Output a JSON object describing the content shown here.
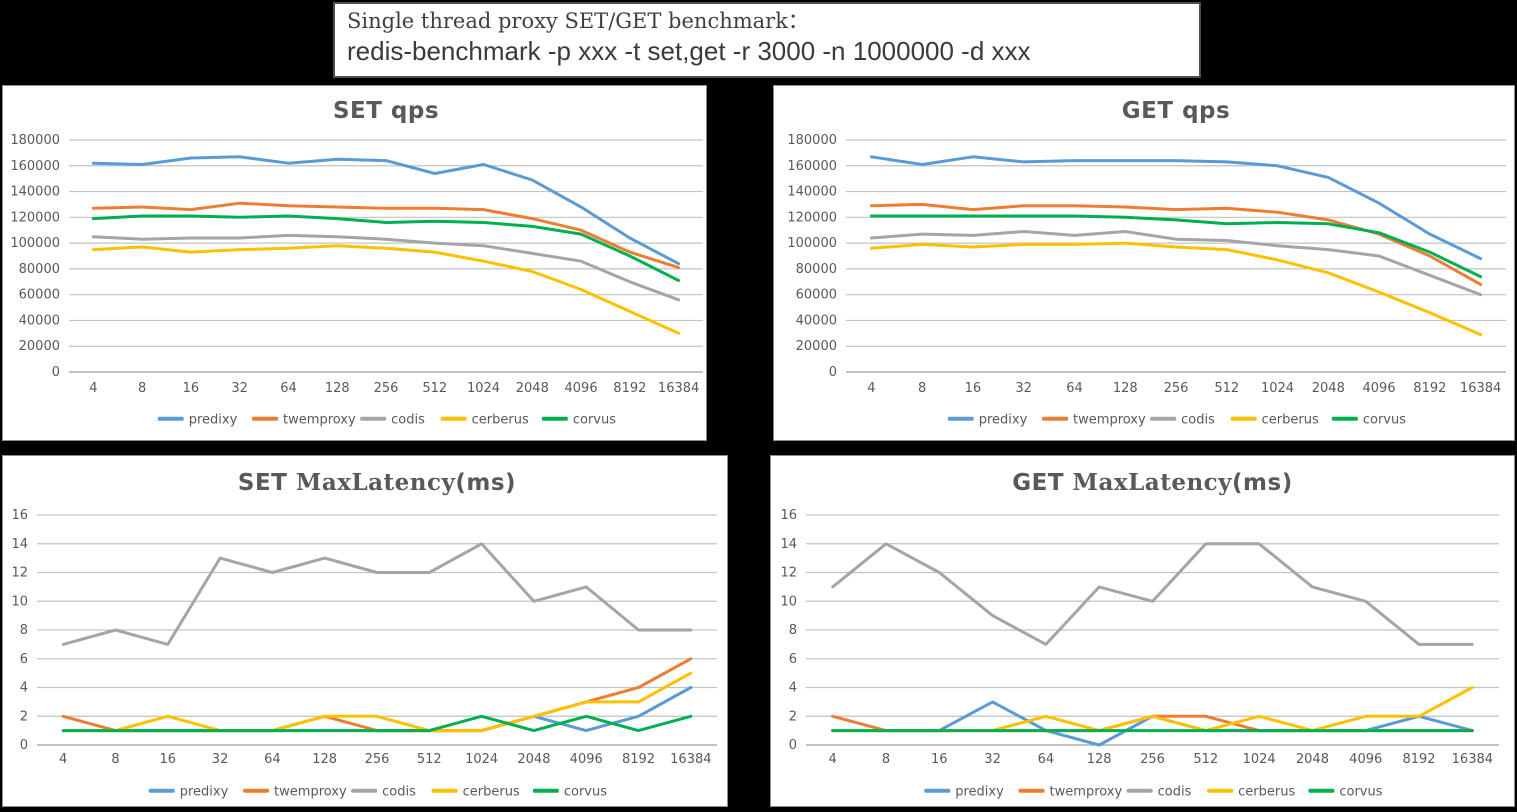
{
  "title_box": {
    "line1": "Single thread proxy SET/GET benchmark：",
    "line2": "redis-benchmark -p xxx -t set,get -r 3000 -n 1000000 -d xxx"
  },
  "colors": {
    "predixy": "#5B9BD5",
    "twemproxy": "#ED7D31",
    "codis": "#A5A5A5",
    "cerberus": "#FFC000",
    "corvus": "#00B050",
    "axis_text": "#595959",
    "gridline": "#C3C3C3",
    "axis_line": "#9e9e9e"
  },
  "chart_data": [
    {
      "id": "set-qps",
      "type": "line",
      "title_parts": [
        {
          "text": "SET  qps",
          "font": "sans"
        }
      ],
      "xlabel": "",
      "ylabel": "",
      "ylim": [
        0,
        180000
      ],
      "ytick_step": 20000,
      "grid": true,
      "legend_position": "bottom",
      "categories": [
        "4",
        "8",
        "16",
        "32",
        "64",
        "128",
        "256",
        "512",
        "1024",
        "2048",
        "4096",
        "8192",
        "16384"
      ],
      "series": [
        {
          "name": "predixy",
          "color": "#5B9BD5",
          "values": [
            162000,
            161000,
            166000,
            167000,
            162000,
            165000,
            164000,
            154000,
            161000,
            149000,
            128000,
            104000,
            84000
          ]
        },
        {
          "name": "twemproxy",
          "color": "#ED7D31",
          "values": [
            127000,
            128000,
            126000,
            131000,
            129000,
            128000,
            127000,
            127000,
            126000,
            119000,
            110000,
            93000,
            81000
          ]
        },
        {
          "name": "codis",
          "color": "#A5A5A5",
          "values": [
            105000,
            103000,
            104000,
            104000,
            106000,
            105000,
            103000,
            100000,
            98000,
            92000,
            86000,
            70000,
            56000
          ]
        },
        {
          "name": "cerberus",
          "color": "#FFC000",
          "values": [
            95000,
            97000,
            93000,
            95000,
            96000,
            98000,
            96000,
            93000,
            86000,
            78000,
            64000,
            47000,
            30000
          ]
        },
        {
          "name": "corvus",
          "color": "#00B050",
          "values": [
            119000,
            121000,
            121000,
            120000,
            121000,
            119000,
            116000,
            117000,
            116000,
            113000,
            107000,
            90000,
            71000
          ]
        }
      ]
    },
    {
      "id": "get-qps",
      "type": "line",
      "title_parts": [
        {
          "text": "GET  qps",
          "font": "sans"
        }
      ],
      "xlabel": "",
      "ylabel": "",
      "ylim": [
        0,
        180000
      ],
      "ytick_step": 20000,
      "grid": true,
      "legend_position": "bottom",
      "categories": [
        "4",
        "8",
        "16",
        "32",
        "64",
        "128",
        "256",
        "512",
        "1024",
        "2048",
        "4096",
        "8192",
        "16384"
      ],
      "series": [
        {
          "name": "predixy",
          "color": "#5B9BD5",
          "values": [
            167000,
            161000,
            167000,
            163000,
            164000,
            164000,
            164000,
            163000,
            160000,
            151000,
            131000,
            107000,
            88000
          ]
        },
        {
          "name": "twemproxy",
          "color": "#ED7D31",
          "values": [
            129000,
            130000,
            126000,
            129000,
            129000,
            128000,
            126000,
            127000,
            124000,
            118000,
            107000,
            90000,
            68000
          ]
        },
        {
          "name": "codis",
          "color": "#A5A5A5",
          "values": [
            104000,
            107000,
            106000,
            109000,
            106000,
            109000,
            103000,
            102000,
            98000,
            95000,
            90000,
            75000,
            60000
          ]
        },
        {
          "name": "cerberus",
          "color": "#FFC000",
          "values": [
            96000,
            99000,
            97000,
            99000,
            99000,
            100000,
            97000,
            95000,
            87000,
            77000,
            62000,
            46000,
            29000
          ]
        },
        {
          "name": "corvus",
          "color": "#00B050",
          "values": [
            121000,
            121000,
            121000,
            121000,
            121000,
            120000,
            118000,
            115000,
            116000,
            115000,
            108000,
            93000,
            74000
          ]
        }
      ]
    },
    {
      "id": "set-maxlatency",
      "type": "line",
      "title_parts": [
        {
          "text": "SET ",
          "font": "sans"
        },
        {
          "text": "MaxLatency",
          "font": "serif"
        },
        {
          "text": "(ms)",
          "font": "sans"
        }
      ],
      "xlabel": "",
      "ylabel": "",
      "ylim": [
        0,
        16
      ],
      "ytick_step": 2,
      "grid": true,
      "legend_position": "bottom",
      "categories": [
        "4",
        "8",
        "16",
        "32",
        "64",
        "128",
        "256",
        "512",
        "1024",
        "2048",
        "4096",
        "8192",
        "16384"
      ],
      "series": [
        {
          "name": "predixy",
          "color": "#5B9BD5",
          "values": [
            1,
            1,
            1,
            1,
            1,
            1,
            1,
            1,
            1,
            2,
            1,
            2,
            4
          ]
        },
        {
          "name": "twemproxy",
          "color": "#ED7D31",
          "values": [
            2,
            1,
            1,
            1,
            1,
            2,
            1,
            1,
            1,
            2,
            3,
            4,
            6
          ]
        },
        {
          "name": "codis",
          "color": "#A5A5A5",
          "values": [
            7,
            8,
            7,
            13,
            12,
            13,
            12,
            12,
            14,
            10,
            11,
            8,
            8
          ]
        },
        {
          "name": "cerberus",
          "color": "#FFC000",
          "values": [
            1,
            1,
            2,
            1,
            1,
            2,
            2,
            1,
            1,
            2,
            3,
            3,
            5
          ]
        },
        {
          "name": "corvus",
          "color": "#00B050",
          "values": [
            1,
            1,
            1,
            1,
            1,
            1,
            1,
            1,
            2,
            1,
            2,
            1,
            2
          ]
        }
      ]
    },
    {
      "id": "get-maxlatency",
      "type": "line",
      "title_parts": [
        {
          "text": "GET ",
          "font": "sans"
        },
        {
          "text": "MaxLatency",
          "font": "serif"
        },
        {
          "text": "(ms)",
          "font": "sans"
        }
      ],
      "xlabel": "",
      "ylabel": "",
      "ylim": [
        0,
        16
      ],
      "ytick_step": 2,
      "grid": true,
      "legend_position": "bottom",
      "categories": [
        "4",
        "8",
        "16",
        "32",
        "64",
        "128",
        "256",
        "512",
        "1024",
        "2048",
        "4096",
        "8192",
        "16384"
      ],
      "series": [
        {
          "name": "predixy",
          "color": "#5B9BD5",
          "values": [
            1,
            1,
            1,
            3,
            1,
            0,
            2,
            1,
            1,
            1,
            1,
            2,
            1
          ]
        },
        {
          "name": "twemproxy",
          "color": "#ED7D31",
          "values": [
            2,
            1,
            1,
            1,
            1,
            1,
            2,
            2,
            1,
            1,
            1,
            1,
            1
          ]
        },
        {
          "name": "codis",
          "color": "#A5A5A5",
          "values": [
            11,
            14,
            12,
            9,
            7,
            11,
            10,
            14,
            14,
            11,
            10,
            7,
            7
          ]
        },
        {
          "name": "cerberus",
          "color": "#FFC000",
          "values": [
            1,
            1,
            1,
            1,
            2,
            1,
            2,
            1,
            2,
            1,
            2,
            2,
            4
          ]
        },
        {
          "name": "corvus",
          "color": "#00B050",
          "values": [
            1,
            1,
            1,
            1,
            1,
            1,
            1,
            1,
            1,
            1,
            1,
            1,
            1
          ]
        }
      ]
    }
  ]
}
